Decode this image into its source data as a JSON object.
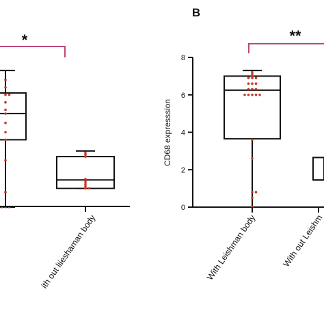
{
  "colors": {
    "bracket": "#c0457a",
    "points": "#c0392b",
    "box": "#111111",
    "axis": "#111111"
  },
  "chart_data": [
    {
      "panel": "",
      "type": "box",
      "categories": [
        "",
        "ith out liieshaman body"
      ],
      "ylabel": "",
      "ylim": [
        0,
        8
      ],
      "boxes": [
        {
          "min": 0,
          "q1": 3.6,
          "median": 5.0,
          "q3": 6.1,
          "max": 7.3,
          "points": [
            0,
            0,
            0,
            0.8,
            2.5,
            3.6,
            4.0,
            4.5,
            5.0,
            5.2,
            5.6,
            6.0,
            6.0,
            6.4,
            6.8
          ]
        },
        {
          "min": 1.0,
          "q1": 1.0,
          "median": 1.45,
          "q3": 2.7,
          "max": 3.0,
          "points": [
            1.0,
            1.0,
            1.1,
            1.2,
            1.3,
            1.4,
            1.5,
            2.7,
            2.8,
            2.9
          ]
        }
      ],
      "significance": "*"
    },
    {
      "panel": "B",
      "type": "box",
      "categories": [
        "With Leishman body",
        "With out Leishm"
      ],
      "ylabel": "CD68 expresssion",
      "yticks": [
        "0",
        "2",
        "4",
        "6",
        "8"
      ],
      "ylim": [
        0,
        8
      ],
      "boxes": [
        {
          "min": 0,
          "q1": 3.65,
          "median": 6.25,
          "q3": 7.0,
          "max": 7.3,
          "points": [
            0,
            0.5,
            0.8,
            0.8,
            2.6,
            3.6,
            6.0,
            6.0,
            6.0,
            6.0,
            6.0,
            6.3,
            6.3,
            6.3,
            6.6,
            6.6,
            6.6,
            6.9,
            6.9,
            6.9,
            7.0,
            7.1,
            7.2
          ]
        },
        {
          "min": 1.45,
          "q1": 1.45,
          "median": 1.45,
          "q3": 2.65,
          "max": 2.65,
          "points": []
        }
      ],
      "significance": "**"
    }
  ]
}
